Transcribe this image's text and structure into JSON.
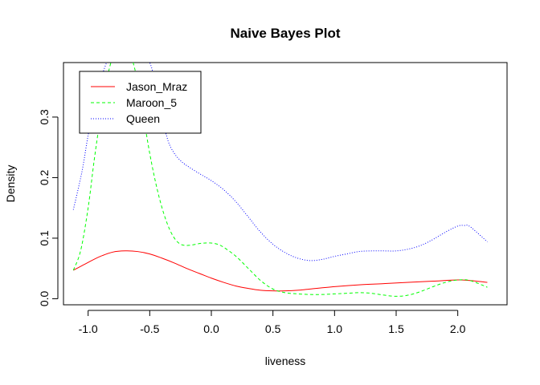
{
  "chart_data": {
    "type": "line",
    "title": "Naive Bayes Plot",
    "xlabel": "liveness",
    "ylabel": "Density",
    "xlim": [
      -1.2,
      2.4
    ],
    "ylim": [
      -0.01,
      0.39
    ],
    "x_ticks": [
      -1.0,
      -0.5,
      0.0,
      0.5,
      1.0,
      1.5,
      2.0
    ],
    "x_tick_labels": [
      "-1.0",
      "-0.5",
      "0.0",
      "0.5",
      "1.0",
      "1.5",
      "2.0"
    ],
    "y_ticks": [
      0.0,
      0.1,
      0.2,
      0.3
    ],
    "y_tick_labels": [
      "0.0",
      "0.1",
      "0.2",
      "0.3"
    ],
    "grid": false,
    "legend_position": "top-left",
    "series": [
      {
        "name": "Jason_Mraz",
        "color": "#ff0000",
        "linestyle": "solid",
        "x": [
          -1.12,
          -1.0,
          -0.9,
          -0.8,
          -0.7,
          -0.6,
          -0.5,
          -0.4,
          -0.3,
          -0.2,
          -0.1,
          0.0,
          0.1,
          0.2,
          0.3,
          0.4,
          0.5,
          0.6,
          0.7,
          0.8,
          1.0,
          1.2,
          1.4,
          1.6,
          1.8,
          2.0,
          2.1,
          2.24
        ],
        "y": [
          0.047,
          0.06,
          0.07,
          0.077,
          0.079,
          0.078,
          0.074,
          0.067,
          0.059,
          0.05,
          0.042,
          0.034,
          0.027,
          0.021,
          0.017,
          0.014,
          0.013,
          0.013,
          0.014,
          0.016,
          0.02,
          0.023,
          0.025,
          0.027,
          0.029,
          0.031,
          0.03,
          0.027
        ]
      },
      {
        "name": "Maroon_5",
        "color": "#00ff00",
        "linestyle": "dashed",
        "x": [
          -1.12,
          -1.06,
          -1.0,
          -0.95,
          -0.9,
          -0.85,
          -0.8,
          -0.75,
          -0.7,
          -0.65,
          -0.6,
          -0.55,
          -0.5,
          -0.45,
          -0.4,
          -0.35,
          -0.3,
          -0.25,
          -0.2,
          -0.15,
          -0.1,
          -0.05,
          0.0,
          0.05,
          0.1,
          0.2,
          0.3,
          0.4,
          0.5,
          0.6,
          0.7,
          0.8,
          0.9,
          1.0,
          1.1,
          1.2,
          1.3,
          1.4,
          1.5,
          1.6,
          1.7,
          1.8,
          1.9,
          2.0,
          2.1,
          2.24
        ],
        "y": [
          0.047,
          0.08,
          0.15,
          0.23,
          0.3,
          0.36,
          0.4,
          0.42,
          0.42,
          0.4,
          0.36,
          0.3,
          0.24,
          0.19,
          0.15,
          0.12,
          0.1,
          0.09,
          0.088,
          0.089,
          0.091,
          0.092,
          0.092,
          0.09,
          0.085,
          0.07,
          0.05,
          0.03,
          0.016,
          0.01,
          0.008,
          0.007,
          0.007,
          0.008,
          0.009,
          0.01,
          0.009,
          0.006,
          0.004,
          0.006,
          0.012,
          0.02,
          0.027,
          0.031,
          0.03,
          0.019
        ]
      },
      {
        "name": "Queen",
        "color": "#0000ff",
        "linestyle": "dotted",
        "x": [
          -1.12,
          -1.05,
          -1.0,
          -0.95,
          -0.9,
          -0.85,
          -0.8,
          -0.7,
          -0.6,
          -0.5,
          -0.45,
          -0.4,
          -0.35,
          -0.3,
          -0.25,
          -0.2,
          -0.1,
          0.0,
          0.1,
          0.2,
          0.3,
          0.4,
          0.5,
          0.6,
          0.7,
          0.8,
          0.9,
          1.0,
          1.1,
          1.2,
          1.3,
          1.4,
          1.5,
          1.6,
          1.7,
          1.8,
          1.9,
          2.0,
          2.05,
          2.1,
          2.24
        ],
        "y": [
          0.147,
          0.21,
          0.27,
          0.32,
          0.36,
          0.39,
          0.41,
          0.43,
          0.42,
          0.39,
          0.35,
          0.3,
          0.26,
          0.24,
          0.228,
          0.22,
          0.207,
          0.195,
          0.18,
          0.16,
          0.135,
          0.11,
          0.09,
          0.076,
          0.067,
          0.063,
          0.065,
          0.07,
          0.074,
          0.078,
          0.079,
          0.079,
          0.079,
          0.082,
          0.088,
          0.098,
          0.11,
          0.12,
          0.121,
          0.119,
          0.094
        ]
      }
    ]
  }
}
